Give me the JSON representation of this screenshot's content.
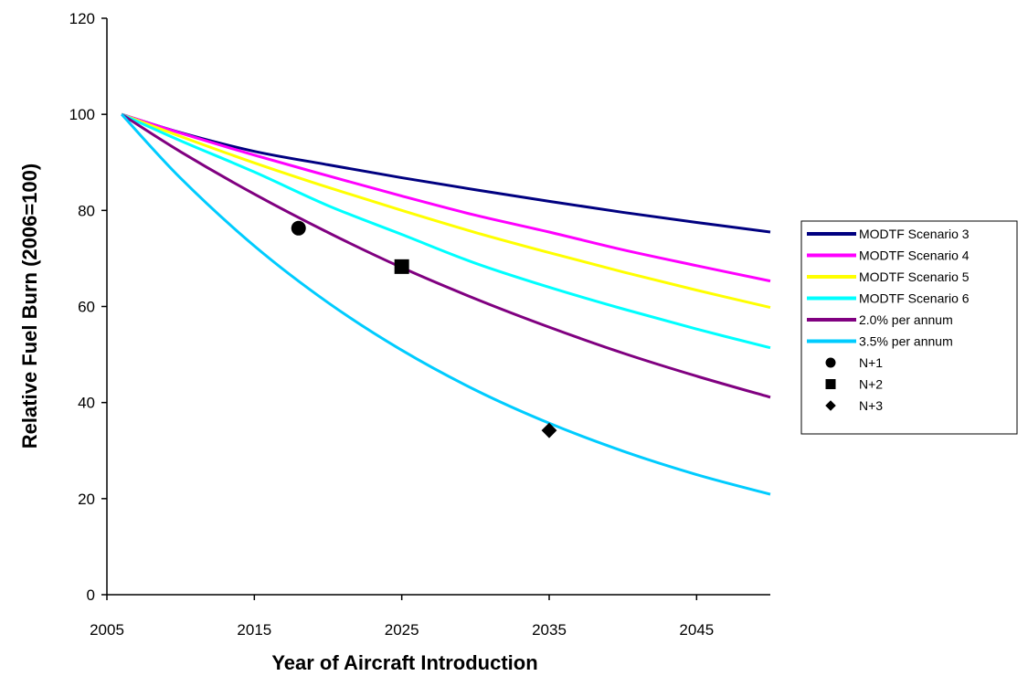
{
  "chart_data": {
    "type": "line",
    "title": "",
    "xlabel": "Year of Aircraft Introduction",
    "ylabel": "Relative Fuel Burn (2006=100)",
    "xlim": [
      2005,
      2050
    ],
    "ylim": [
      0,
      120
    ],
    "x_ticks": [
      2005,
      2015,
      2025,
      2035,
      2045
    ],
    "y_ticks": [
      0,
      20,
      40,
      60,
      80,
      100,
      120
    ],
    "grid": false,
    "legend_position": "right",
    "series": [
      {
        "name": "MODTF Scenario 3",
        "kind": "line",
        "color": "#000080",
        "x": [
          2006,
          2010,
          2015,
          2020,
          2025,
          2030,
          2035,
          2040,
          2045,
          2050
        ],
        "y": [
          100,
          96.2,
          92.3,
          89.5,
          86.8,
          84.3,
          81.9,
          79.6,
          77.5,
          75.5
        ]
      },
      {
        "name": "MODTF Scenario 4",
        "kind": "line",
        "color": "#ff00ff",
        "x": [
          2006,
          2010,
          2015,
          2020,
          2025,
          2030,
          2035,
          2040,
          2045,
          2050
        ],
        "y": [
          100,
          96.1,
          91.5,
          87.2,
          83.0,
          79.0,
          75.5,
          71.8,
          68.5,
          65.3
        ]
      },
      {
        "name": "MODTF Scenario 5",
        "kind": "line",
        "color": "#ffff00",
        "x": [
          2006,
          2010,
          2015,
          2020,
          2025,
          2030,
          2035,
          2040,
          2045,
          2050
        ],
        "y": [
          100,
          95.4,
          89.9,
          84.8,
          80.0,
          75.4,
          71.2,
          67.2,
          63.4,
          59.8
        ]
      },
      {
        "name": "MODTF Scenario 6",
        "kind": "line",
        "color": "#00ffff",
        "x": [
          2006,
          2010,
          2015,
          2020,
          2025,
          2030,
          2035,
          2040,
          2045,
          2050
        ],
        "y": [
          100,
          94.5,
          88.0,
          81.0,
          75.0,
          69.0,
          64.0,
          59.5,
          55.3,
          51.4
        ]
      },
      {
        "name": "2.0% per annum",
        "kind": "line",
        "color": "#800080",
        "x": [
          2006,
          2010,
          2015,
          2020,
          2025,
          2030,
          2035,
          2040,
          2045,
          2050
        ],
        "y": [
          100,
          92.2,
          83.4,
          75.4,
          68.1,
          61.6,
          55.7,
          50.3,
          45.5,
          41.1
        ]
      },
      {
        "name": "3.5% per annum",
        "kind": "line",
        "color": "#00ccff",
        "x": [
          2006,
          2010,
          2015,
          2020,
          2025,
          2030,
          2035,
          2040,
          2045,
          2050
        ],
        "y": [
          100,
          86.7,
          72.6,
          60.8,
          50.9,
          42.6,
          35.7,
          29.9,
          25.0,
          20.9
        ]
      },
      {
        "name": "N+1",
        "kind": "marker",
        "marker": "circle",
        "color": "#000000",
        "x": [
          2018
        ],
        "y": [
          76.3
        ]
      },
      {
        "name": "N+2",
        "kind": "marker",
        "marker": "square",
        "color": "#000000",
        "x": [
          2025
        ],
        "y": [
          68.3
        ]
      },
      {
        "name": "N+3",
        "kind": "marker",
        "marker": "diamond",
        "color": "#000000",
        "x": [
          2035
        ],
        "y": [
          34.2
        ]
      }
    ]
  }
}
